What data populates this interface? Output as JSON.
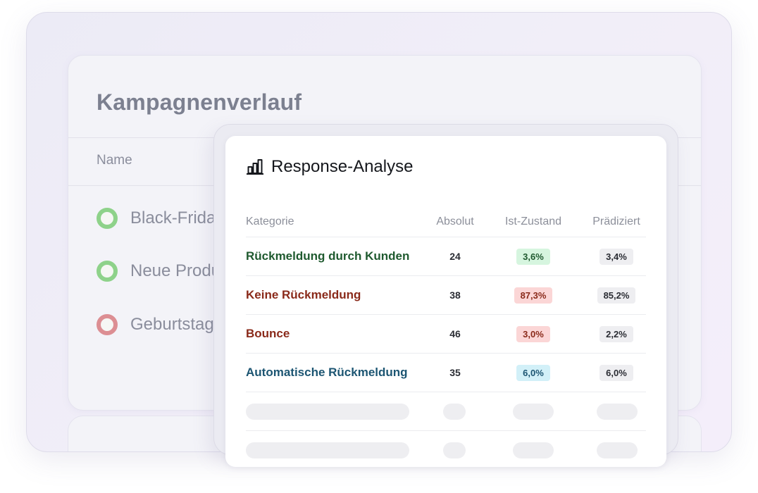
{
  "background_panel": {
    "title": "Kampagnenverlauf",
    "column_name": "Name",
    "campaigns": [
      {
        "name": "Black-Friday",
        "status": "active",
        "color": "#8ed28a"
      },
      {
        "name": "Neue Produktc",
        "status": "active",
        "color": "#8ed28a"
      },
      {
        "name": "Geburtstage",
        "status": "stopped",
        "color": "#dc8e93"
      }
    ]
  },
  "response_panel": {
    "title": "Response-Analyse",
    "icon": "bar-chart-icon",
    "columns": [
      "Kategorie",
      "Absolut",
      "Ist-Zustand",
      "Prädiziert"
    ],
    "rows": [
      {
        "category": "Rückmeldung durch Kunden",
        "category_color": "#1f5a2f",
        "absolute": "24",
        "actual": "3,6%",
        "actual_bg": "#d6f5df",
        "actual_color": "#1f5a2f",
        "predicted": "3,4%",
        "predicted_bg": "#eeeef1",
        "predicted_color": "#2a2c33"
      },
      {
        "category": "Keine Rückmeldung",
        "category_color": "#8a2a1a",
        "absolute": "38",
        "actual": "87,3%",
        "actual_bg": "#fbd6d6",
        "actual_color": "#8a2a1a",
        "predicted": "85,2%",
        "predicted_bg": "#eeeef1",
        "predicted_color": "#2a2c33"
      },
      {
        "category": "Bounce",
        "category_color": "#8a2a1a",
        "absolute": "46",
        "actual": "3,0%",
        "actual_bg": "#fbd6d6",
        "actual_color": "#8a2a1a",
        "predicted": "2,2%",
        "predicted_bg": "#eeeef1",
        "predicted_color": "#2a2c33"
      },
      {
        "category": "Automatische Rückmeldung",
        "category_color": "#1c5572",
        "absolute": "35",
        "actual": "6,0%",
        "actual_bg": "#d2f0f8",
        "actual_color": "#1c5572",
        "predicted": "6,0%",
        "predicted_bg": "#eeeef1",
        "predicted_color": "#2a2c33"
      }
    ],
    "placeholder_rows": 2
  }
}
